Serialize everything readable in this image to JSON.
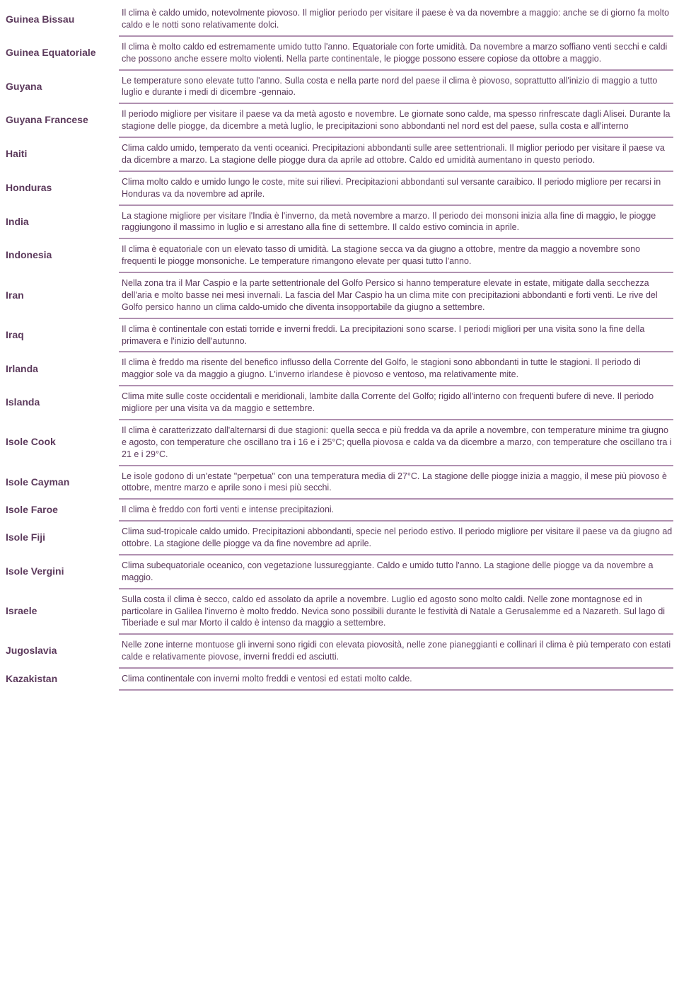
{
  "rows": [
    {
      "country": "Guinea Bissau",
      "desc": "Il clima è caldo umido, notevolmente piovoso. Il miglior periodo per visitare il paese è va da novembre a maggio: anche se di giorno fa molto caldo e le notti sono relativamente dolci."
    },
    {
      "country": "Guinea Equatoriale",
      "desc": "Il clima è molto caldo ed estremamente umido tutto l'anno. Equatoriale con forte umidità. Da novembre a marzo soffiano venti secchi e caldi che possono anche essere molto violenti. Nella parte continentale, le piogge possono essere copiose da ottobre a maggio."
    },
    {
      "country": "Guyana",
      "desc": "Le temperature sono elevate tutto l'anno. Sulla costa e nella parte nord del paese il clima è piovoso, soprattutto all'inizio di maggio a tutto luglio e durante i medi di dicembre -gennaio."
    },
    {
      "country": "Guyana Francese",
      "desc": "Il periodo migliore per visitare il paese va da metà agosto e novembre. Le giornate sono calde, ma spesso rinfrescate dagli Alisei. Durante la stagione delle piogge, da dicembre a metà luglio, le precipitazioni sono abbondanti nel nord est del paese, sulla costa e all'interno"
    },
    {
      "country": "Haiti",
      "desc": "Clima caldo umido, temperato da venti oceanici. Precipitazioni abbondanti sulle aree settentrionali. Il miglior periodo per visitare il paese va da dicembre a marzo. La stagione delle piogge dura da aprile ad ottobre. Caldo ed umidità aumentano in questo periodo."
    },
    {
      "country": "Honduras",
      "desc": "Clima molto caldo e umido lungo le coste, mite sui rilievi. Precipitazioni abbondanti sul versante caraibico. Il periodo migliore per recarsi in Honduras va da novembre ad aprile."
    },
    {
      "country": "India",
      "desc": "La stagione migliore per visitare l'India è l'inverno, da metà novembre a marzo. Il periodo dei monsoni inizia alla fine di maggio, le piogge raggiungono il massimo in luglio e si arrestano alla fine di settembre. Il caldo estivo comincia in aprile."
    },
    {
      "country": "Indonesia",
      "desc": "Il clima è equatoriale con un elevato tasso di umidità. La stagione secca va da giugno a ottobre, mentre da maggio a novembre sono frequenti le piogge monsoniche. Le temperature rimangono elevate per quasi tutto l'anno."
    },
    {
      "country": "Iran",
      "desc": "Nella zona tra il Mar Caspio e la parte settentrionale del Golfo Persico si hanno temperature elevate in estate, mitigate dalla secchezza dell'aria e molto basse nei mesi invernali. La fascia del Mar Caspio ha un clima mite con precipitazioni abbondanti e forti venti. Le rive del Golfo persico hanno un clima caldo-umido che diventa insopportabile da giugno a settembre."
    },
    {
      "country": "Iraq",
      "desc": "Il clima è continentale con estati torride e inverni freddi. La precipitazioni sono scarse. I periodi migliori per una visita sono la fine della primavera e l'inizio dell'autunno."
    },
    {
      "country": "Irlanda",
      "desc": "Il clima è freddo ma risente del benefico influsso della Corrente del Golfo, le stagioni sono abbondanti in tutte le stagioni. Il periodo di maggior sole va da maggio a giugno. L'inverno irlandese è piovoso e ventoso, ma relativamente mite."
    },
    {
      "country": "Islanda",
      "desc": "Clima mite sulle coste occidentali e meridionali, lambite dalla Corrente del Golfo; rigido all'interno con frequenti bufere di neve. Il periodo migliore per una visita va da maggio e settembre."
    },
    {
      "country": "Isole Cook",
      "desc": "Il clima è caratterizzato dall'alternarsi di due stagioni: quella secca e più fredda va da aprile a novembre, con temperature minime tra giugno e agosto, con temperature che oscillano tra i 16 e i 25°C; quella piovosa e calda va da dicembre a marzo, con temperature che oscillano tra i 21 e i 29°C."
    },
    {
      "country": "Isole Cayman",
      "desc": "Le isole godono di un'estate \"perpetua\" con una temperatura media di 27°C. La stagione delle piogge inizia a maggio, il mese più piovoso è ottobre, mentre marzo e aprile sono i mesi più secchi."
    },
    {
      "country": "Isole Faroe",
      "desc": "Il clima è freddo con forti venti e intense precipitazioni."
    },
    {
      "country": "Isole Fiji",
      "desc": "Clima sud-tropicale caldo umido. Precipitazioni abbondanti, specie nel periodo estivo. Il periodo migliore per visitare il paese va da giugno ad ottobre. La stagione delle piogge va da fine novembre ad aprile."
    },
    {
      "country": "Isole Vergini",
      "desc": "Clima subequatoriale oceanico, con vegetazione lussureggiante. Caldo e umido tutto l'anno. La stagione delle piogge va da novembre a maggio."
    },
    {
      "country": "Israele",
      "desc": "Sulla costa il clima è secco, caldo ed assolato da aprile a novembre. Luglio ed agosto sono molto caldi. Nelle zone montagnose ed in particolare in Galilea l'inverno è molto freddo. Nevica sono possibili durante le festività di Natale a Gerusalemme ed a Nazareth. Sul lago di Tiberiade e sul mar Morto il caldo è intenso da maggio a settembre."
    },
    {
      "country": "Jugoslavia",
      "desc": "Nelle zone interne montuose gli inverni sono rigidi con elevata piovosità, nelle zone pianeggianti e collinari il clima è più temperato con estati calde e relativamente piovose, inverni freddi ed asciutti."
    },
    {
      "country": "Kazakistan",
      "desc": "Clima continentale con inverni molto freddi e ventosi ed estati molto calde."
    }
  ]
}
